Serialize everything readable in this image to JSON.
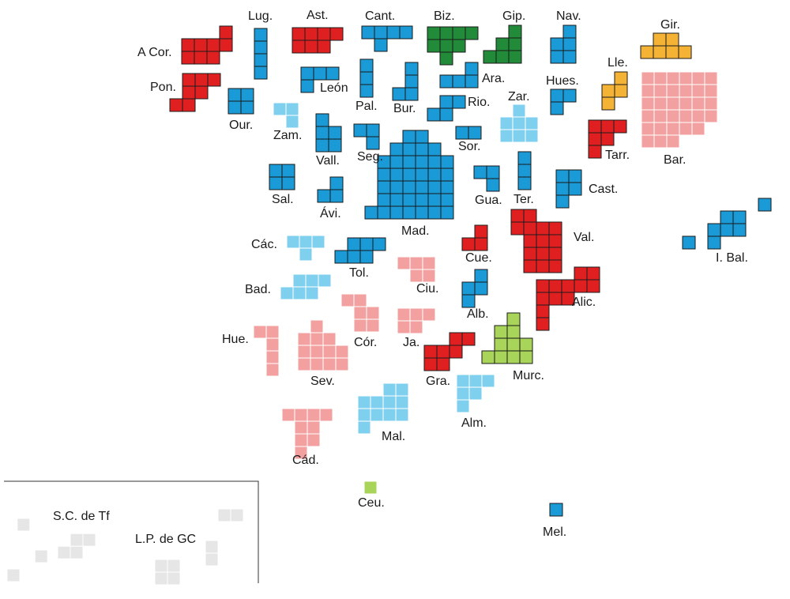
{
  "colors": {
    "red": "#e02020",
    "blue": "#1a9ad6",
    "lightblue": "#7fcfee",
    "pink": "#f2a0a0",
    "green": "#228b3a",
    "lime": "#a8d45a",
    "orange": "#f5b335",
    "grey": "#e6e6e6"
  },
  "chart_data": {
    "type": "tile_map",
    "unit": "one square per seat",
    "provinces": [
      {
        "label": "A Cor.",
        "color": "red",
        "seats": 8
      },
      {
        "label": "Lug.",
        "color": "blue",
        "seats": 4
      },
      {
        "label": "Ast.",
        "color": "red",
        "seats": 7
      },
      {
        "label": "Cant.",
        "color": "blue",
        "seats": 5
      },
      {
        "label": "Biz.",
        "color": "green",
        "seats": 8
      },
      {
        "label": "Gip.",
        "color": "green",
        "seats": 6
      },
      {
        "label": "Nav.",
        "color": "blue",
        "seats": 5
      },
      {
        "label": "Gir.",
        "color": "orange",
        "seats": 6
      },
      {
        "label": "Pon.",
        "color": "red",
        "seats": 7
      },
      {
        "label": "León",
        "color": "blue",
        "seats": 4
      },
      {
        "label": "Pal.",
        "color": "blue",
        "seats": 3
      },
      {
        "label": "Bur.",
        "color": "blue",
        "seats": 4
      },
      {
        "label": "Ara.",
        "color": "blue",
        "seats": 4
      },
      {
        "label": "Hues.",
        "color": "blue",
        "seats": 3
      },
      {
        "label": "Lle.",
        "color": "orange",
        "seats": 4
      },
      {
        "label": "Bar.",
        "color": "pink",
        "seats": 32
      },
      {
        "label": "Our.",
        "color": "blue",
        "seats": 4
      },
      {
        "label": "Zam.",
        "color": "lightblue",
        "seats": 3
      },
      {
        "label": "Vall.",
        "color": "blue",
        "seats": 5
      },
      {
        "label": "Seg.",
        "color": "blue",
        "seats": 3
      },
      {
        "label": "Rio.",
        "color": "blue",
        "seats": 4
      },
      {
        "label": "Sor.",
        "color": "blue",
        "seats": 2
      },
      {
        "label": "Zar.",
        "color": "lightblue",
        "seats": 7
      },
      {
        "label": "Tarr.",
        "color": "red",
        "seats": 6
      },
      {
        "label": "Sal.",
        "color": "blue",
        "seats": 4
      },
      {
        "label": "Ávi.",
        "color": "blue",
        "seats": 3
      },
      {
        "label": "Mad.",
        "color": "blue",
        "seats": 37
      },
      {
        "label": "Gua.",
        "color": "blue",
        "seats": 3
      },
      {
        "label": "Ter.",
        "color": "blue",
        "seats": 3
      },
      {
        "label": "Cast.",
        "color": "blue",
        "seats": 5
      },
      {
        "label": "Các.",
        "color": "lightblue",
        "seats": 4
      },
      {
        "label": "Tol.",
        "color": "blue",
        "seats": 6
      },
      {
        "label": "Cue.",
        "color": "red",
        "seats": 3
      },
      {
        "label": "Val.",
        "color": "red",
        "seats": 15
      },
      {
        "label": "I. Bal.",
        "color": "blue",
        "seats": 8
      },
      {
        "label": "Bad.",
        "color": "lightblue",
        "seats": 6
      },
      {
        "label": "Ciu.",
        "color": "pink",
        "seats": 5
      },
      {
        "label": "Alb.",
        "color": "blue",
        "seats": 4
      },
      {
        "label": "Alic.",
        "color": "red",
        "seats": 12
      },
      {
        "label": "Hue.",
        "color": "pink",
        "seats": 5
      },
      {
        "label": "Sev.",
        "color": "pink",
        "seats": 12
      },
      {
        "label": "Cór.",
        "color": "pink",
        "seats": 6
      },
      {
        "label": "Ja.",
        "color": "pink",
        "seats": 5
      },
      {
        "label": "Gra.",
        "color": "red",
        "seats": 7
      },
      {
        "label": "Murc.",
        "color": "lime",
        "seats": 10
      },
      {
        "label": "Mal.",
        "color": "lightblue",
        "seats": 11
      },
      {
        "label": "Alm.",
        "color": "lightblue",
        "seats": 6
      },
      {
        "label": "Cád.",
        "color": "pink",
        "seats": 9
      },
      {
        "label": "Ceu.",
        "color": "lime",
        "seats": 1
      },
      {
        "label": "Mel.",
        "color": "blue",
        "seats": 1
      },
      {
        "label": "S.C. de Tf",
        "color": "grey",
        "seats": 7
      },
      {
        "label": "L.P. de GC",
        "color": "grey",
        "seats": 8
      }
    ]
  }
}
